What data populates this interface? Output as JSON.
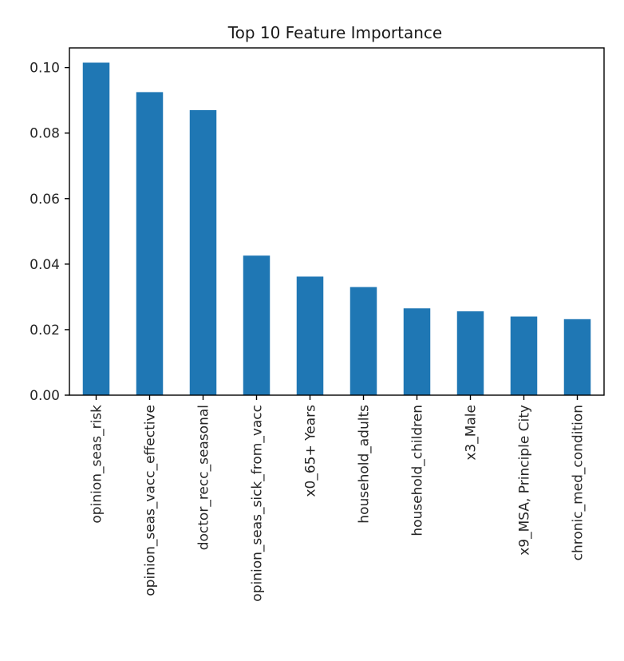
{
  "chart_data": {
    "type": "bar",
    "title": "Top 10 Feature Importance",
    "xlabel": "",
    "ylabel": "",
    "categories": [
      "opinion_seas_risk",
      "opinion_seas_vacc_effective",
      "doctor_recc_seasonal",
      "opinion_seas_sick_from_vacc",
      "x0_65+ Years",
      "household_adults",
      "household_children",
      "x3_Male",
      "x9_MSA, Principle City",
      "chronic_med_condition"
    ],
    "values": [
      0.1015,
      0.0925,
      0.087,
      0.0426,
      0.0362,
      0.033,
      0.0265,
      0.0256,
      0.024,
      0.0232
    ],
    "ylim": [
      0,
      0.106
    ],
    "yticks": [
      "0.00",
      "0.02",
      "0.04",
      "0.06",
      "0.08",
      "0.10"
    ],
    "bar_color": "#1f77b4",
    "grid": false,
    "legend": "none"
  }
}
